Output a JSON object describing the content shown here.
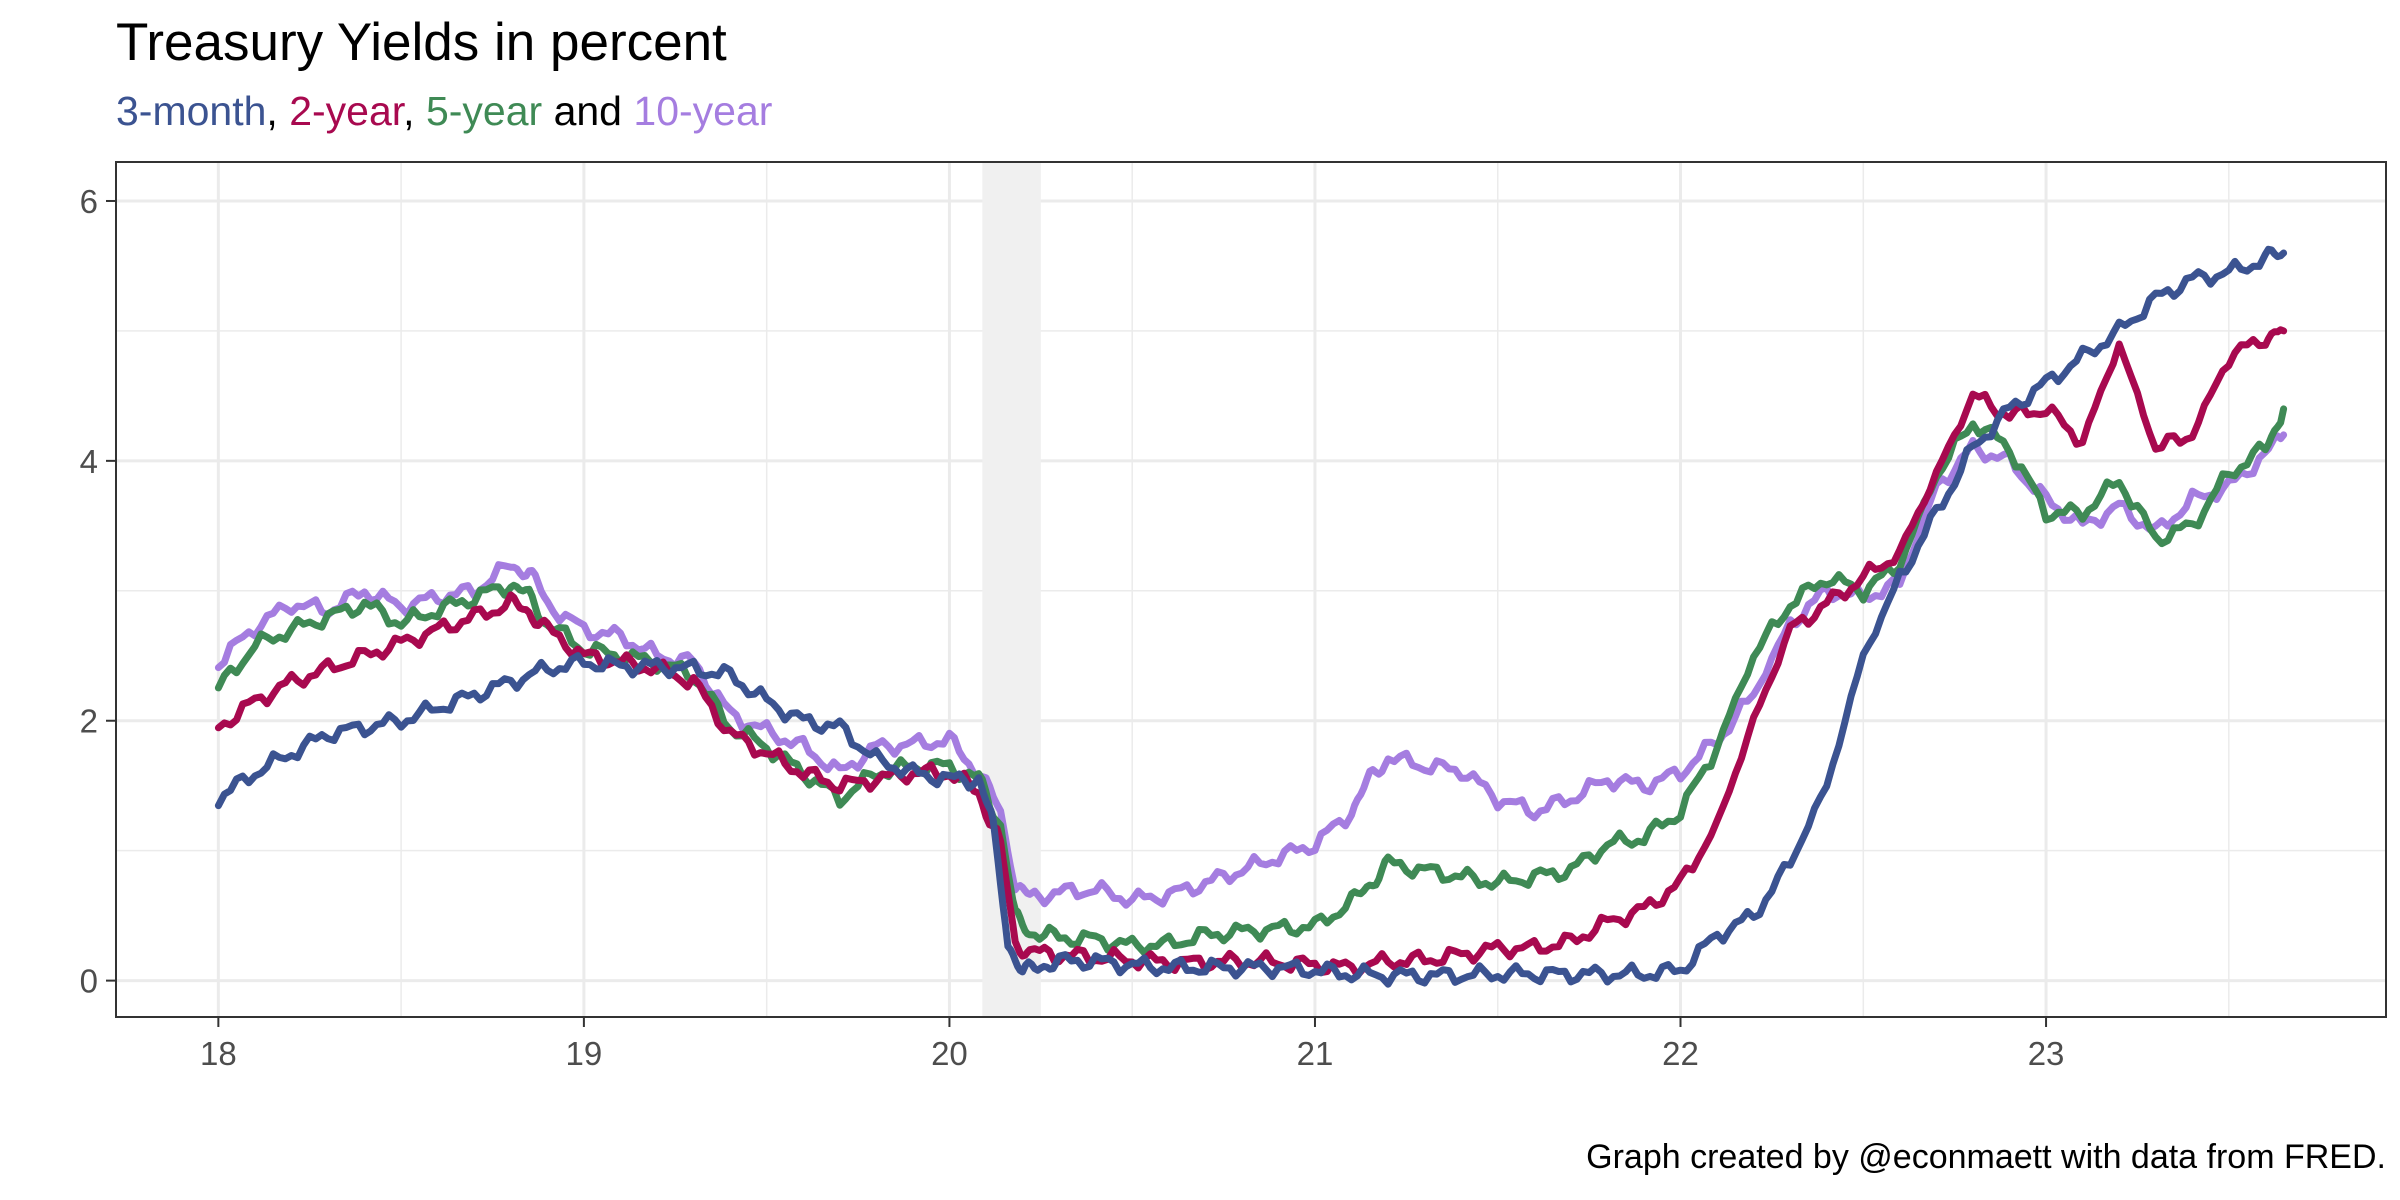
{
  "chart_data": {
    "type": "line",
    "title": "Treasury Yields in percent",
    "subtitle_parts": [
      {
        "text": "3-month",
        "color": "#3b5391"
      },
      {
        "text": ", ",
        "color": "#000000"
      },
      {
        "text": "2-year",
        "color": "#a8094f"
      },
      {
        "text": ", ",
        "color": "#000000"
      },
      {
        "text": "5-year",
        "color": "#3f8a55"
      },
      {
        "text": " and ",
        "color": "#000000"
      },
      {
        "text": "10-year",
        "color": "#a57de0"
      }
    ],
    "caption": "Graph created by @econmaett with data from FRED.",
    "xlabel": "",
    "ylabel": "",
    "x_ticks": [
      {
        "value": 18,
        "label": "18"
      },
      {
        "value": 19,
        "label": "19"
      },
      {
        "value": 20,
        "label": "20"
      },
      {
        "value": 21,
        "label": "21"
      },
      {
        "value": 22,
        "label": "22"
      },
      {
        "value": 23,
        "label": "23"
      }
    ],
    "y_ticks": [
      {
        "value": 0,
        "label": "0"
      },
      {
        "value": 2,
        "label": "2"
      },
      {
        "value": 4,
        "label": "4"
      },
      {
        "value": 6,
        "label": "6"
      }
    ],
    "xlim": [
      17.72,
      23.93
    ],
    "ylim": [
      -0.28,
      6.3
    ],
    "grid": true,
    "recession_shading": {
      "start": 20.09,
      "end": 20.25,
      "color": "#f0f0f0"
    },
    "series": [
      {
        "name": "10-year",
        "color": "#a57de0",
        "x": [
          18.0,
          18.1,
          18.2,
          18.3,
          18.4,
          18.5,
          18.6,
          18.7,
          18.8,
          18.85,
          18.9,
          19.0,
          19.1,
          19.2,
          19.3,
          19.4,
          19.5,
          19.6,
          19.7,
          19.8,
          19.9,
          20.0,
          20.08,
          20.14,
          20.18,
          20.22,
          20.3,
          20.4,
          20.5,
          20.6,
          20.7,
          20.8,
          20.9,
          21.0,
          21.1,
          21.15,
          21.2,
          21.3,
          21.4,
          21.5,
          21.6,
          21.7,
          21.8,
          21.9,
          22.0,
          22.1,
          22.2,
          22.3,
          22.4,
          22.5,
          22.6,
          22.7,
          22.8,
          22.9,
          23.0,
          23.1,
          23.2,
          23.3,
          23.4,
          23.5,
          23.6,
          23.65
        ],
        "y": [
          2.45,
          2.72,
          2.9,
          2.85,
          3.0,
          2.88,
          2.95,
          3.0,
          3.2,
          3.15,
          2.9,
          2.7,
          2.65,
          2.5,
          2.45,
          2.05,
          1.92,
          1.8,
          1.6,
          1.8,
          1.82,
          1.85,
          1.6,
          1.3,
          0.72,
          0.64,
          0.68,
          0.7,
          0.62,
          0.66,
          0.75,
          0.85,
          0.95,
          1.05,
          1.3,
          1.55,
          1.72,
          1.65,
          1.62,
          1.4,
          1.3,
          1.4,
          1.55,
          1.5,
          1.6,
          1.85,
          2.2,
          2.75,
          3.0,
          2.95,
          3.05,
          3.8,
          4.1,
          4.0,
          3.7,
          3.5,
          3.65,
          3.45,
          3.7,
          3.8,
          4.05,
          4.2
        ]
      },
      {
        "name": "5-year",
        "color": "#3f8a55",
        "x": [
          18.0,
          18.1,
          18.2,
          18.3,
          18.4,
          18.5,
          18.6,
          18.7,
          18.8,
          18.85,
          18.9,
          19.0,
          19.1,
          19.2,
          19.3,
          19.4,
          19.5,
          19.6,
          19.7,
          19.8,
          19.9,
          20.0,
          20.08,
          20.14,
          20.18,
          20.22,
          20.3,
          20.4,
          20.5,
          20.6,
          20.7,
          20.8,
          20.9,
          21.0,
          21.1,
          21.15,
          21.2,
          21.3,
          21.4,
          21.5,
          21.6,
          21.7,
          21.8,
          21.9,
          22.0,
          22.1,
          22.2,
          22.3,
          22.4,
          22.5,
          22.6,
          22.7,
          22.8,
          22.9,
          23.0,
          23.1,
          23.2,
          23.3,
          23.4,
          23.5,
          23.6,
          23.65
        ],
        "y": [
          2.25,
          2.58,
          2.7,
          2.8,
          2.9,
          2.75,
          2.85,
          2.95,
          3.05,
          2.95,
          2.75,
          2.55,
          2.5,
          2.45,
          2.35,
          1.95,
          1.8,
          1.6,
          1.4,
          1.6,
          1.65,
          1.65,
          1.55,
          1.2,
          0.48,
          0.38,
          0.33,
          0.32,
          0.27,
          0.28,
          0.35,
          0.38,
          0.4,
          0.42,
          0.6,
          0.75,
          0.9,
          0.85,
          0.8,
          0.75,
          0.8,
          0.85,
          1.05,
          1.1,
          1.3,
          1.8,
          2.5,
          2.9,
          3.1,
          3.0,
          3.2,
          3.9,
          4.3,
          4.1,
          3.6,
          3.6,
          3.85,
          3.4,
          3.5,
          3.9,
          4.1,
          4.4
        ]
      },
      {
        "name": "2-year",
        "color": "#a8094f",
        "x": [
          18.0,
          18.1,
          18.2,
          18.3,
          18.4,
          18.5,
          18.6,
          18.7,
          18.8,
          18.85,
          18.9,
          19.0,
          19.1,
          19.2,
          19.3,
          19.4,
          19.5,
          19.6,
          19.7,
          19.8,
          19.9,
          20.0,
          20.08,
          20.14,
          20.18,
          20.22,
          20.3,
          20.4,
          20.5,
          20.6,
          20.7,
          20.8,
          20.9,
          21.0,
          21.1,
          21.2,
          21.3,
          21.4,
          21.5,
          21.6,
          21.7,
          21.8,
          21.9,
          22.0,
          22.1,
          22.2,
          22.3,
          22.4,
          22.5,
          22.6,
          22.7,
          22.8,
          22.9,
          23.0,
          23.1,
          23.2,
          23.3,
          23.4,
          23.5,
          23.6,
          23.65
        ],
        "y": [
          1.95,
          2.15,
          2.3,
          2.4,
          2.5,
          2.6,
          2.7,
          2.8,
          2.9,
          2.85,
          2.7,
          2.5,
          2.45,
          2.4,
          2.3,
          1.9,
          1.75,
          1.6,
          1.5,
          1.55,
          1.6,
          1.6,
          1.45,
          1.05,
          0.3,
          0.22,
          0.2,
          0.18,
          0.16,
          0.14,
          0.14,
          0.15,
          0.14,
          0.12,
          0.1,
          0.15,
          0.16,
          0.2,
          0.25,
          0.25,
          0.3,
          0.45,
          0.55,
          0.75,
          1.2,
          2.0,
          2.7,
          2.9,
          3.1,
          3.3,
          3.9,
          4.5,
          4.35,
          4.4,
          4.15,
          4.9,
          4.1,
          4.2,
          4.8,
          4.95,
          5.0
        ]
      },
      {
        "name": "3-month",
        "color": "#3b5391",
        "x": [
          18.0,
          18.1,
          18.2,
          18.3,
          18.4,
          18.5,
          18.6,
          18.7,
          18.8,
          18.9,
          19.0,
          19.1,
          19.2,
          19.3,
          19.4,
          19.5,
          19.6,
          19.7,
          19.8,
          19.9,
          20.0,
          20.08,
          20.12,
          20.16,
          20.2,
          20.25,
          20.3,
          20.4,
          20.5,
          20.6,
          20.7,
          20.8,
          20.9,
          21.0,
          21.1,
          21.2,
          21.3,
          21.4,
          21.5,
          21.6,
          21.7,
          21.8,
          21.9,
          22.0,
          22.1,
          22.2,
          22.3,
          22.4,
          22.5,
          22.6,
          22.7,
          22.8,
          22.9,
          23.0,
          23.1,
          23.2,
          23.3,
          23.4,
          23.5,
          23.6,
          23.65
        ],
        "y": [
          1.4,
          1.6,
          1.75,
          1.9,
          1.95,
          2.0,
          2.1,
          2.2,
          2.3,
          2.4,
          2.45,
          2.42,
          2.42,
          2.4,
          2.35,
          2.15,
          2.0,
          1.95,
          1.7,
          1.6,
          1.55,
          1.55,
          1.2,
          0.3,
          0.05,
          0.12,
          0.15,
          0.15,
          0.12,
          0.1,
          0.1,
          0.1,
          0.1,
          0.08,
          0.05,
          0.04,
          0.04,
          0.04,
          0.05,
          0.05,
          0.05,
          0.05,
          0.05,
          0.08,
          0.35,
          0.5,
          0.9,
          1.5,
          2.5,
          3.1,
          3.6,
          4.1,
          4.4,
          4.6,
          4.8,
          5.0,
          5.25,
          5.4,
          5.45,
          5.55,
          5.6
        ]
      }
    ]
  }
}
